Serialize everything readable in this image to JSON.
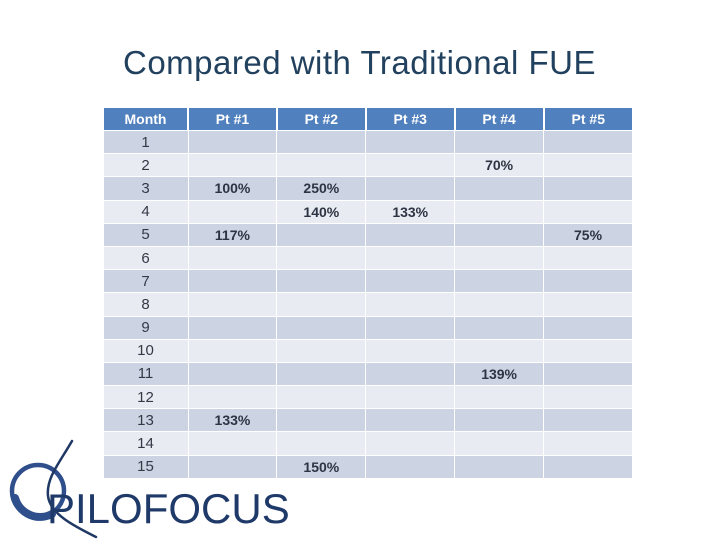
{
  "title": "Compared with Traditional FUE",
  "logo": {
    "text": "PILOFOCUS",
    "mark": "pilofocus-follicle-icon"
  },
  "chart_data": {
    "type": "table",
    "title": "Compared with Traditional FUE",
    "columns": [
      "Month",
      "Pt #1",
      "Pt #2",
      "Pt #3",
      "Pt #4",
      "Pt #5"
    ],
    "rows": [
      [
        "1",
        "",
        "",
        "",
        "",
        ""
      ],
      [
        "2",
        "",
        "",
        "",
        "70%",
        ""
      ],
      [
        "3",
        "100%",
        "250%",
        "",
        "",
        ""
      ],
      [
        "4",
        "",
        "140%",
        "133%",
        "",
        ""
      ],
      [
        "5",
        "117%",
        "",
        "",
        "",
        "75%"
      ],
      [
        "6",
        "",
        "",
        "",
        "",
        ""
      ],
      [
        "7",
        "",
        "",
        "",
        "",
        ""
      ],
      [
        "8",
        "",
        "",
        "",
        "",
        ""
      ],
      [
        "9",
        "",
        "",
        "",
        "",
        ""
      ],
      [
        "10",
        "",
        "",
        "",
        "",
        ""
      ],
      [
        "11",
        "",
        "",
        "",
        "139%",
        ""
      ],
      [
        "12",
        "",
        "",
        "",
        "",
        ""
      ],
      [
        "13",
        "133%",
        "",
        "",
        "",
        ""
      ],
      [
        "14",
        "",
        "",
        "",
        "",
        ""
      ],
      [
        "15",
        "",
        "150%",
        "",
        "",
        ""
      ]
    ]
  },
  "colors": {
    "title-color": "#21415e",
    "header-bg": "#5080bd",
    "header-text": "#ffffff",
    "row-odd": "#ccd4e3",
    "row-even": "#e9ebf3",
    "month-text": "#333945",
    "value-text": "#2d3442",
    "logo-color": "#1f3969",
    "logo-circle": "#2e4e8c"
  }
}
